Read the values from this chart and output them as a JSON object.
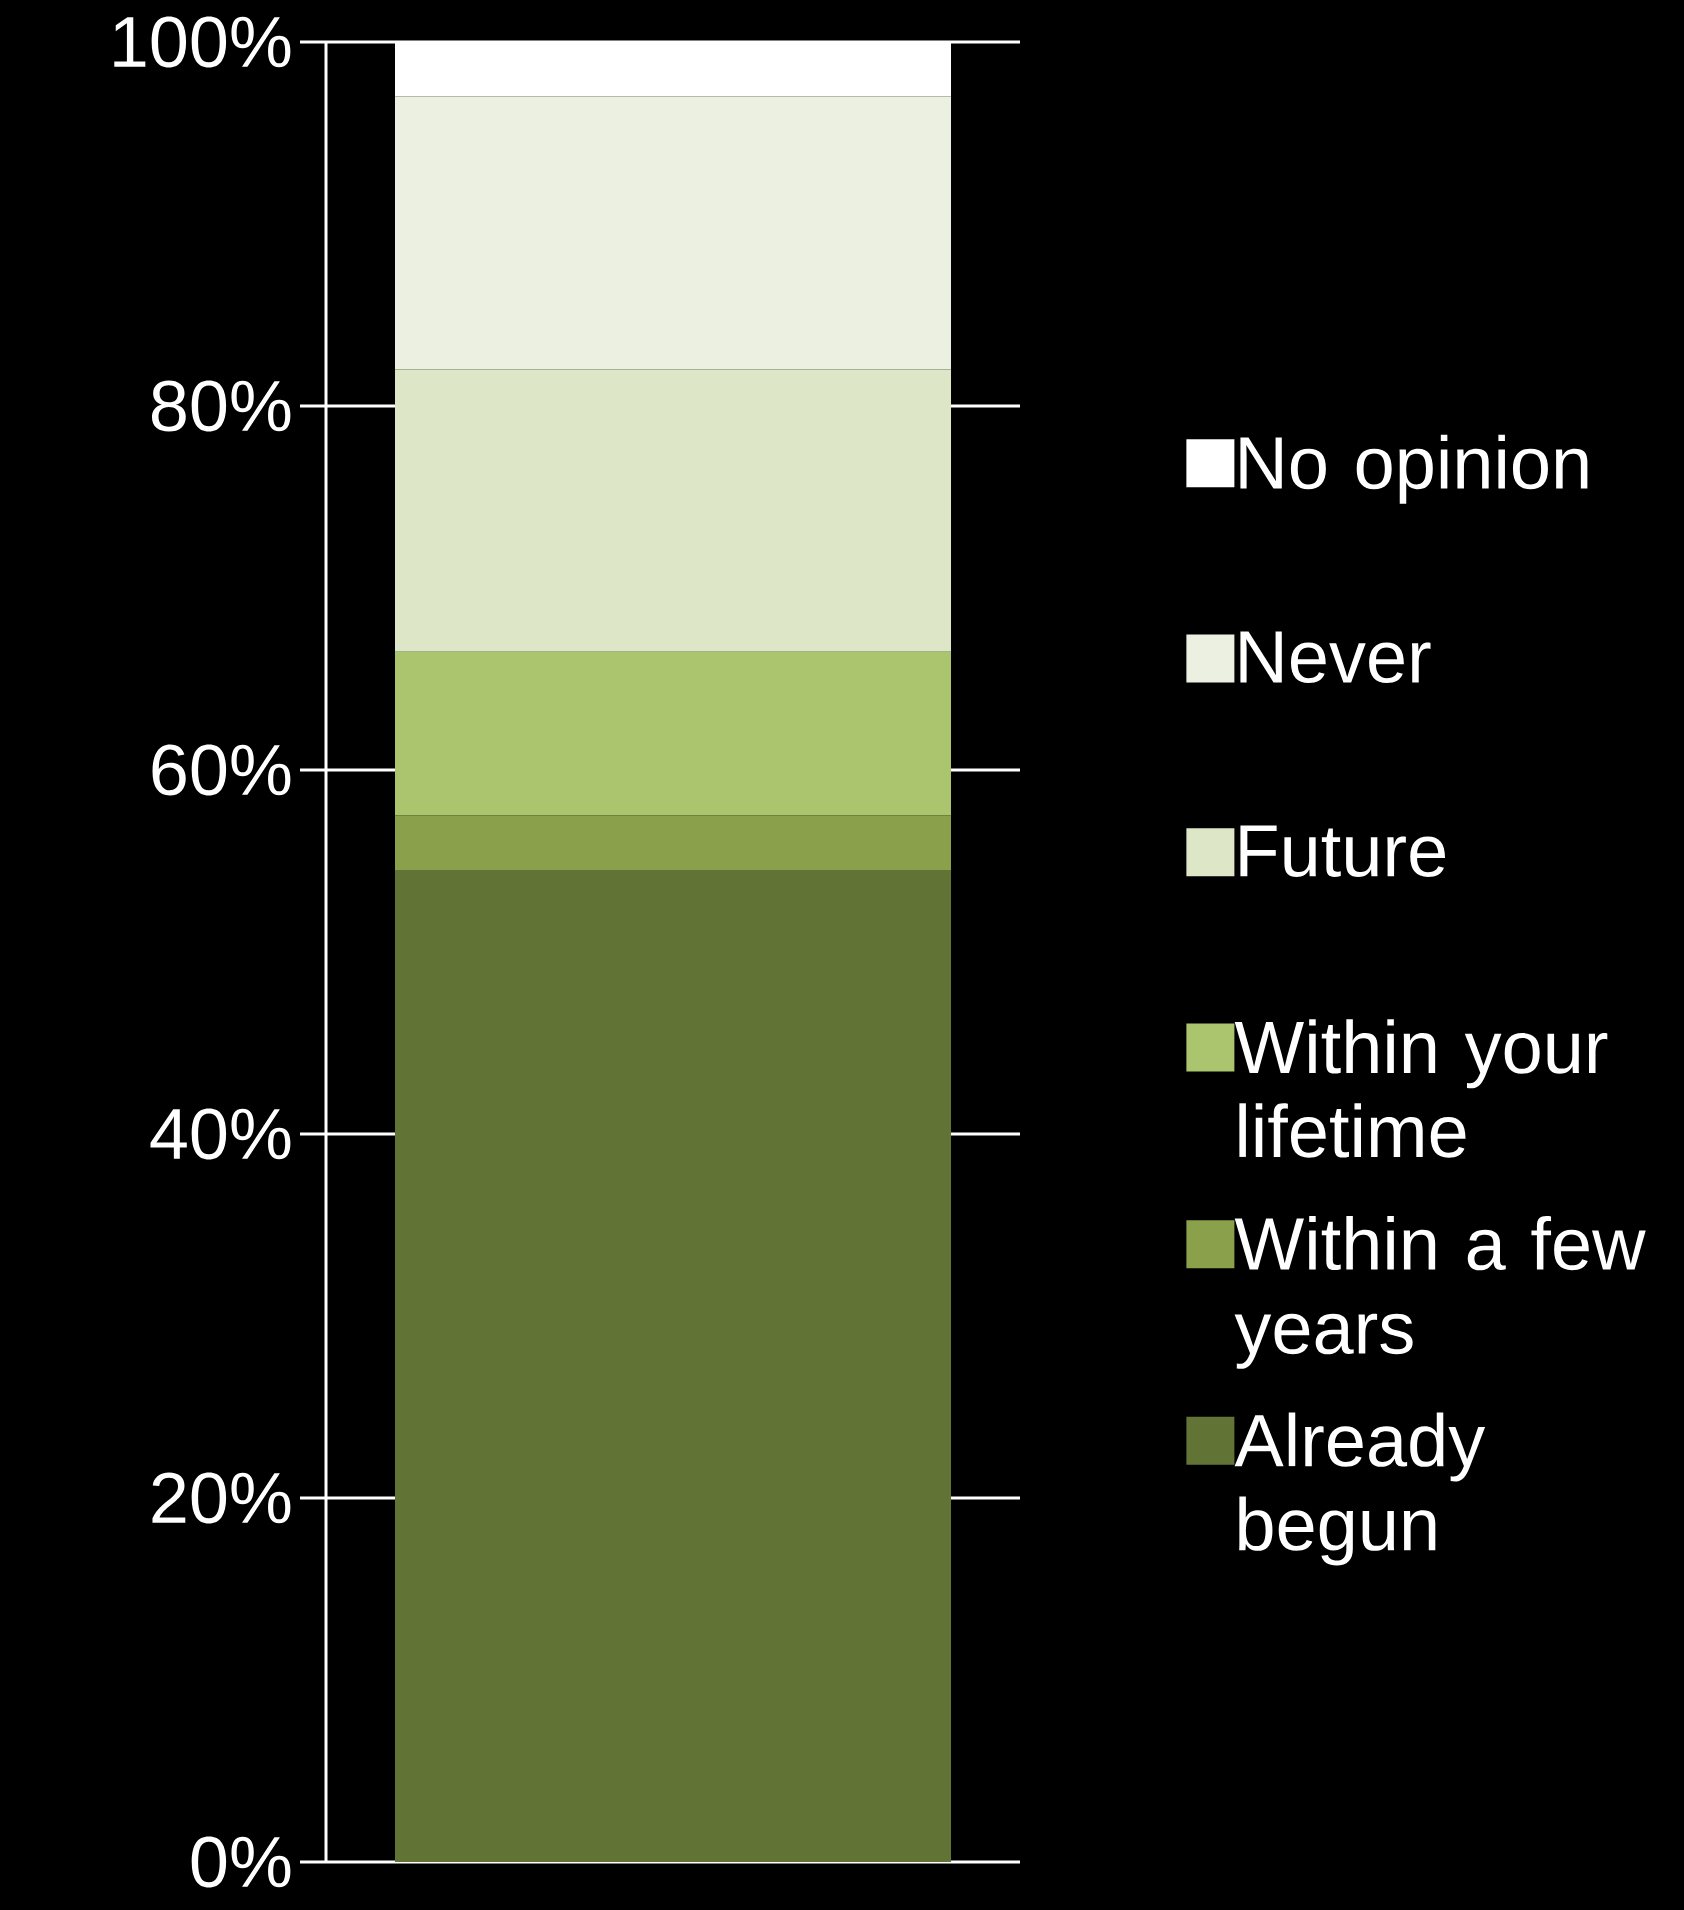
{
  "chart_data": {
    "type": "bar",
    "stacked": true,
    "categories": [
      null
    ],
    "series": [
      {
        "name": "Already begun",
        "color": "#617435",
        "values": [
          54.5
        ]
      },
      {
        "name": "Within a few years",
        "color": "#8aa04b",
        "values": [
          3
        ]
      },
      {
        "name": "Within your lifetime",
        "color": "#abc46e",
        "values": [
          9
        ]
      },
      {
        "name": "Future",
        "color": "#dee6c8",
        "values": [
          15.5
        ]
      },
      {
        "name": "Never",
        "color": "#ecf0e1",
        "values": [
          15
        ]
      },
      {
        "name": "No opinion",
        "color": "#ffffff",
        "values": [
          3
        ]
      }
    ],
    "ylim": [
      0,
      100
    ],
    "yticks": [
      {
        "value": 0,
        "label": "0%"
      },
      {
        "value": 20,
        "label": "20%"
      },
      {
        "value": 40,
        "label": "40%"
      },
      {
        "value": 60,
        "label": "60%"
      },
      {
        "value": 80,
        "label": "80%"
      },
      {
        "value": 100,
        "label": "100%"
      }
    ],
    "grid": "y",
    "legend": "right"
  }
}
